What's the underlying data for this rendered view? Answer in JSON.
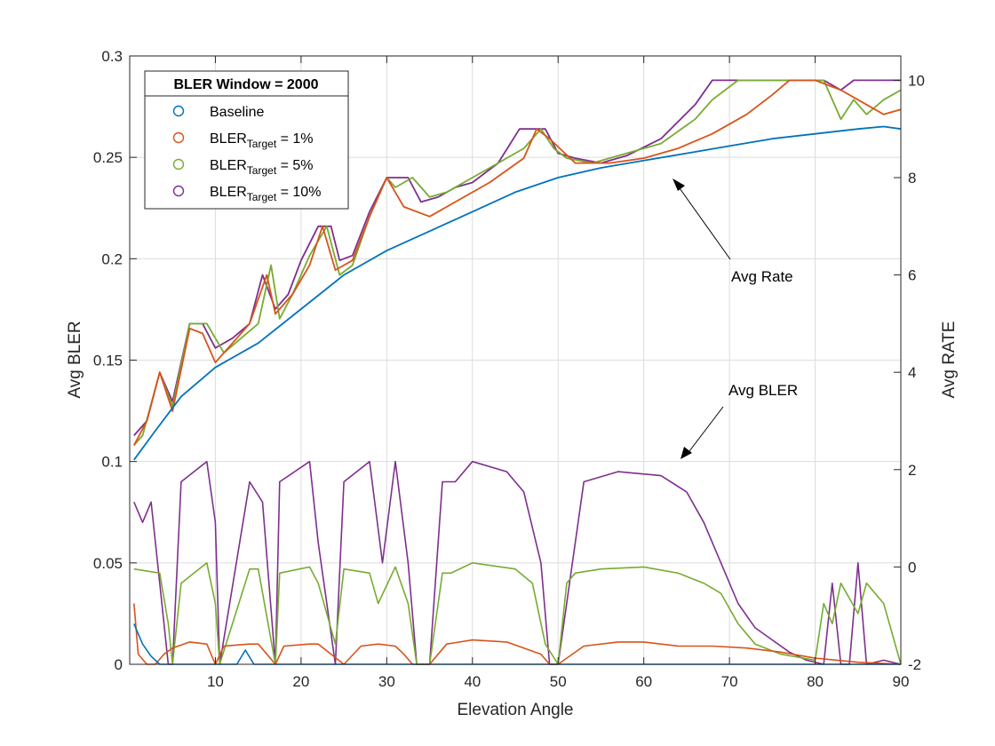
{
  "chart_data": {
    "type": "line",
    "xlabel": "Elevation Angle",
    "ylabel_left": "Avg BLER",
    "ylabel_right": "Avg RATE",
    "xlim": [
      0,
      90
    ],
    "ylim_left": [
      0,
      0.3
    ],
    "ylim_right": [
      -2,
      10.5
    ],
    "xticks": [
      10,
      20,
      30,
      40,
      50,
      60,
      70,
      80,
      90
    ],
    "xtick_labels": [
      "10",
      "20",
      "30",
      "40",
      "50",
      "60",
      "70",
      "80",
      "90"
    ],
    "yticks_left": [
      0,
      0.05,
      0.1,
      0.15,
      0.2,
      0.25,
      0.3
    ],
    "ytick_labels_left": [
      "0",
      "0.05",
      "0.1",
      "0.15",
      "0.2",
      "0.25",
      "0.3"
    ],
    "yticks_right": [
      -2,
      0,
      2,
      4,
      6,
      8,
      10
    ],
    "ytick_labels_right": [
      "-2",
      "0",
      "2",
      "4",
      "6",
      "8",
      "10"
    ],
    "grid": true,
    "legend": {
      "title": "BLER Window = 2000",
      "placement": "top-left",
      "entries": [
        {
          "base": "Baseline",
          "sub": "",
          "suffix": "",
          "color": "#0072BD"
        },
        {
          "base": "BLER",
          "sub": "Target",
          "suffix": " = 1%",
          "color": "#D95319"
        },
        {
          "base": "BLER",
          "sub": "Target",
          "suffix": " = 5%",
          "color": "#77AC30"
        },
        {
          "base": "BLER",
          "sub": "Target",
          "suffix": " = 10%",
          "color": "#7E2F8E"
        }
      ]
    },
    "annotations": [
      {
        "text": "Avg Rate"
      },
      {
        "text": "Avg BLER"
      }
    ],
    "series": [
      {
        "name": "Baseline",
        "color": "#0072BD",
        "rate": {
          "x": [
            0.5,
            3,
            6,
            10,
            15,
            20,
            25,
            30,
            35,
            40,
            45,
            50,
            55,
            60,
            65,
            70,
            75,
            80,
            85,
            88,
            90
          ],
          "y": [
            2.2,
            2.8,
            3.5,
            4.1,
            4.6,
            5.3,
            6.0,
            6.5,
            6.9,
            7.3,
            7.7,
            8.0,
            8.2,
            8.35,
            8.5,
            8.65,
            8.8,
            8.9,
            9.0,
            9.05,
            9.0
          ]
        },
        "bler": {
          "x": [
            0.5,
            1.5,
            2.5,
            3.5,
            5,
            12.5,
            13.5,
            14.5,
            90
          ],
          "y": [
            0.02,
            0.01,
            0.004,
            0,
            0,
            0,
            0.007,
            0,
            0
          ]
        }
      },
      {
        "name": "BLER Target = 1%",
        "color": "#D95319",
        "rate": {
          "x": [
            0.5,
            2,
            3.5,
            5,
            7,
            8.5,
            10,
            12,
            14,
            16,
            17,
            19,
            21,
            22.5,
            24,
            26,
            28,
            30,
            32,
            35,
            38,
            42,
            46,
            47.5,
            49,
            52,
            56,
            60,
            64,
            68,
            72,
            75,
            77,
            80,
            83,
            86,
            88,
            90
          ],
          "y": [
            2.5,
            3.0,
            4.0,
            3.2,
            4.9,
            4.8,
            4.2,
            4.6,
            5.0,
            6.0,
            5.2,
            5.6,
            6.2,
            7.0,
            6.1,
            6.3,
            7.2,
            8.0,
            7.4,
            7.2,
            7.5,
            7.9,
            8.4,
            9.0,
            8.8,
            8.3,
            8.3,
            8.4,
            8.6,
            8.9,
            9.3,
            9.7,
            10.0,
            10.0,
            9.8,
            9.5,
            9.3,
            9.4
          ]
        },
        "bler": {
          "x": [
            0.5,
            1,
            2,
            3,
            4,
            5,
            7,
            9,
            10,
            11,
            14,
            15,
            17,
            18,
            21,
            22,
            25,
            27,
            29,
            31,
            32,
            33,
            35,
            37,
            40,
            44,
            48,
            49,
            50,
            53,
            57,
            60,
            64,
            68,
            72,
            76,
            80,
            85,
            90
          ],
          "y": [
            0.03,
            0.005,
            0,
            0,
            0.005,
            0.008,
            0.011,
            0.01,
            0,
            0.009,
            0.01,
            0.01,
            0,
            0.009,
            0.01,
            0.01,
            0,
            0.009,
            0.01,
            0.009,
            0.005,
            0,
            0,
            0.01,
            0.012,
            0.011,
            0.005,
            0,
            0,
            0.009,
            0.011,
            0.011,
            0.009,
            0.009,
            0.008,
            0.006,
            0.003,
            0.001,
            0
          ]
        }
      },
      {
        "name": "BLER Target = 5%",
        "color": "#77AC30",
        "rate": {
          "x": [
            0.5,
            1.5,
            3.5,
            5,
            7,
            9,
            11,
            13,
            15,
            16.5,
            17.5,
            19,
            21,
            23,
            24.5,
            26,
            28,
            30,
            31,
            33,
            35,
            37,
            40,
            43,
            46,
            48,
            49.5,
            51,
            54,
            58,
            62,
            66,
            68,
            71,
            74,
            78,
            81,
            83,
            84.5,
            86,
            88,
            90
          ],
          "y": [
            2.5,
            2.7,
            4.0,
            3.3,
            5.0,
            5.0,
            4.4,
            4.7,
            5.0,
            6.2,
            5.1,
            5.6,
            6.4,
            7.0,
            6.0,
            6.2,
            7.2,
            8.0,
            7.8,
            8.0,
            7.6,
            7.7,
            8.0,
            8.3,
            8.6,
            9.0,
            8.6,
            8.4,
            8.3,
            8.5,
            8.7,
            9.2,
            9.6,
            10.0,
            10.0,
            10.0,
            10.0,
            9.2,
            9.6,
            9.3,
            9.6,
            9.8
          ]
        },
        "bler": {
          "x": [
            0.5,
            3.5,
            4.5,
            5,
            6,
            9,
            10,
            10.5,
            14,
            15,
            17,
            17.5,
            21,
            22,
            24,
            25,
            28,
            29,
            31,
            32.5,
            33.5,
            35,
            36.5,
            37.5,
            40,
            45,
            47,
            48.5,
            50,
            51,
            52,
            55,
            60,
            64,
            67,
            69,
            71,
            73,
            76,
            80,
            81,
            82,
            83,
            85,
            86,
            88,
            90
          ],
          "y": [
            0.047,
            0.045,
            0.02,
            0,
            0.04,
            0.05,
            0.03,
            0,
            0.047,
            0.047,
            0,
            0.045,
            0.048,
            0.04,
            0.01,
            0.047,
            0.045,
            0.03,
            0.048,
            0.03,
            0,
            0,
            0.045,
            0.045,
            0.05,
            0.047,
            0.04,
            0.01,
            0,
            0.04,
            0.045,
            0.047,
            0.048,
            0.045,
            0.04,
            0.035,
            0.02,
            0.01,
            0.005,
            0.002,
            0.03,
            0.02,
            0.04,
            0.025,
            0.04,
            0.03,
            0
          ]
        }
      },
      {
        "name": "BLER Target = 10%",
        "color": "#7E2F8E",
        "rate": {
          "x": [
            0.5,
            2,
            3.5,
            5,
            7,
            8.5,
            10,
            12,
            14,
            15.5,
            17,
            18.5,
            20,
            22,
            23.5,
            24.5,
            26,
            28,
            30,
            31,
            32.5,
            34,
            36,
            38,
            40,
            43,
            45.5,
            47,
            48.5,
            50,
            52,
            55,
            58,
            62,
            66,
            68,
            70,
            75,
            79,
            81,
            83,
            84.5,
            86,
            88,
            90
          ],
          "y": [
            2.7,
            3.0,
            4.0,
            3.4,
            5.0,
            5.0,
            4.5,
            4.7,
            5.0,
            6.0,
            5.3,
            5.6,
            6.3,
            7.0,
            7.0,
            6.3,
            6.4,
            7.3,
            8.0,
            8.0,
            8.0,
            7.5,
            7.6,
            7.8,
            7.9,
            8.3,
            9.0,
            9.0,
            9.0,
            8.5,
            8.4,
            8.3,
            8.45,
            8.8,
            9.5,
            10.0,
            10.0,
            10.0,
            10.0,
            10.0,
            9.8,
            10.0,
            10.0,
            10.0,
            10.0
          ]
        },
        "bler": {
          "x": [
            0.5,
            1.5,
            2.5,
            3.5,
            4.5,
            5,
            6,
            9,
            10,
            10.5,
            14,
            15.5,
            17,
            17.5,
            21,
            22,
            24,
            25,
            28,
            29.5,
            31,
            32.5,
            33.5,
            35,
            36.5,
            38,
            40,
            44,
            46,
            48,
            49,
            50,
            53,
            57,
            62,
            65,
            67,
            69,
            71,
            73,
            75,
            77,
            79,
            81,
            82,
            83,
            84,
            85,
            86,
            88,
            90
          ],
          "y": [
            0.08,
            0.07,
            0.08,
            0.04,
            0,
            0,
            0.09,
            0.1,
            0.07,
            0,
            0.09,
            0.08,
            0,
            0.09,
            0.1,
            0.06,
            0,
            0.09,
            0.1,
            0.05,
            0.1,
            0.05,
            0,
            0,
            0.09,
            0.09,
            0.1,
            0.095,
            0.085,
            0.05,
            0,
            0,
            0.09,
            0.095,
            0.093,
            0.085,
            0.07,
            0.05,
            0.03,
            0.018,
            0.012,
            0.006,
            0.002,
            0,
            0.04,
            0,
            0,
            0.05,
            0,
            0.002,
            0
          ]
        }
      }
    ]
  }
}
